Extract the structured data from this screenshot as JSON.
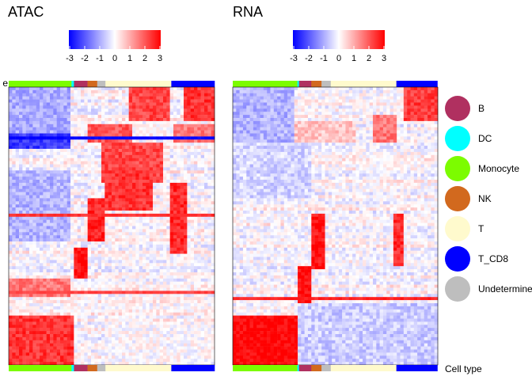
{
  "chart_data": {
    "type": "heatmap",
    "color_scale": {
      "ticks": [
        "-3",
        "-2",
        "-1",
        "0",
        "1",
        "2",
        "3"
      ],
      "min": -3,
      "max": 3,
      "colors": {
        "low": "#0000ff",
        "mid": "#ffffff",
        "high": "#ff0000"
      }
    },
    "annotation_label": "Cell type",
    "annotation_label_cut": "e",
    "panels": [
      {
        "title": "ATAC",
        "n_rows": 90,
        "n_cols": 60,
        "annotation": [
          {
            "type": "Monocyte",
            "fraction": 0.305
          },
          {
            "type": "DC",
            "fraction": 0.012
          },
          {
            "type": "B",
            "fraction": 0.066
          },
          {
            "type": "NK",
            "fraction": 0.047
          },
          {
            "type": "Undetermined",
            "fraction": 0.04
          },
          {
            "type": "T",
            "fraction": 0.32
          },
          {
            "type": "T_CD8",
            "fraction": 0.21
          }
        ],
        "blocks": [
          {
            "rows": [
              0.0,
              0.12
            ],
            "cols": [
              0.59,
              0.79
            ],
            "value": 2.2
          },
          {
            "rows": [
              0.0,
              0.12
            ],
            "cols": [
              0.85,
              1.0
            ],
            "value": 2.4
          },
          {
            "rows": [
              0.0,
              0.2
            ],
            "cols": [
              0.0,
              0.3
            ],
            "value": -1.0
          },
          {
            "rows": [
              0.13,
              0.2
            ],
            "cols": [
              0.38,
              0.6
            ],
            "value": 2.0
          },
          {
            "rows": [
              0.13,
              0.2
            ],
            "cols": [
              0.8,
              1.0
            ],
            "value": 1.6
          },
          {
            "rows": [
              0.17,
              0.22
            ],
            "cols": [
              0.0,
              0.3
            ],
            "value": -2.3
          },
          {
            "rows": [
              0.2,
              0.34
            ],
            "cols": [
              0.45,
              0.75
            ],
            "value": 2.2
          },
          {
            "rows": [
              0.3,
              0.45
            ],
            "cols": [
              0.46,
              0.7
            ],
            "value": 2.4
          },
          {
            "rows": [
              0.3,
              0.56
            ],
            "cols": [
              0.0,
              0.3
            ],
            "value": -0.9
          },
          {
            "rows": [
              0.4,
              0.56
            ],
            "cols": [
              0.39,
              0.47
            ],
            "value": 2.6
          },
          {
            "rows": [
              0.35,
              0.6
            ],
            "cols": [
              0.79,
              0.86
            ],
            "value": 2.5
          },
          {
            "rows": [
              0.58,
              0.69
            ],
            "cols": [
              0.31,
              0.38
            ],
            "value": 2.8
          },
          {
            "rows": [
              0.69,
              0.76
            ],
            "cols": [
              0.0,
              0.3
            ],
            "value": 1.6
          },
          {
            "rows": [
              0.82,
              1.0
            ],
            "cols": [
              0.0,
              0.31
            ],
            "value": 2.4
          },
          {
            "rows": [
              0.84,
              1.0
            ],
            "cols": [
              0.47,
              1.0
            ],
            "value": 0.0
          }
        ],
        "hlines": [
          {
            "rows": [
              0.18,
              0.19
            ],
            "value": -3.0
          },
          {
            "rows": [
              0.46,
              0.47
            ],
            "value": 2.4
          },
          {
            "rows": [
              0.73,
              0.74
            ],
            "value": 2.2
          }
        ]
      },
      {
        "title": "RNA",
        "n_rows": 90,
        "n_cols": 60,
        "annotation": [
          {
            "type": "Monocyte",
            "fraction": 0.315
          },
          {
            "type": "DC",
            "fraction": 0.008
          },
          {
            "type": "B",
            "fraction": 0.06
          },
          {
            "type": "NK",
            "fraction": 0.05
          },
          {
            "type": "Undetermined",
            "fraction": 0.045
          },
          {
            "type": "T",
            "fraction": 0.32
          },
          {
            "type": "T_CD8",
            "fraction": 0.2
          }
        ],
        "blocks": [
          {
            "rows": [
              0.0,
              0.12
            ],
            "cols": [
              0.84,
              1.0
            ],
            "value": 2.3
          },
          {
            "rows": [
              0.0,
              0.2
            ],
            "cols": [
              0.0,
              0.3
            ],
            "value": -0.9
          },
          {
            "rows": [
              0.1,
              0.2
            ],
            "cols": [
              0.68,
              0.8
            ],
            "value": 1.6
          },
          {
            "rows": [
              0.12,
              0.2
            ],
            "cols": [
              0.3,
              0.6
            ],
            "value": 0.7
          },
          {
            "rows": [
              0.2,
              0.4
            ],
            "cols": [
              0.0,
              0.38
            ],
            "value": -0.5
          },
          {
            "rows": [
              0.46,
              0.66
            ],
            "cols": [
              0.39,
              0.45
            ],
            "value": 2.8
          },
          {
            "rows": [
              0.46,
              0.65
            ],
            "cols": [
              0.79,
              0.83
            ],
            "value": 2.5
          },
          {
            "rows": [
              0.65,
              0.78
            ],
            "cols": [
              0.31,
              0.38
            ],
            "value": 2.9
          },
          {
            "rows": [
              0.82,
              1.0
            ],
            "cols": [
              0.0,
              0.31
            ],
            "value": 3.0
          },
          {
            "rows": [
              0.78,
              1.0
            ],
            "cols": [
              0.32,
              1.0
            ],
            "value": -0.6
          }
        ],
        "hlines": [
          {
            "rows": [
              0.76,
              0.77
            ],
            "value": 2.6
          }
        ]
      }
    ],
    "legend": {
      "placement": "right",
      "entries": [
        {
          "label": "B",
          "color": "#b03060"
        },
        {
          "label": "DC",
          "color": "#00ffff"
        },
        {
          "label": "Monocyte",
          "color": "#7cfc00"
        },
        {
          "label": "NK",
          "color": "#d2691e"
        },
        {
          "label": "T",
          "color": "#fffacd"
        },
        {
          "label": "T_CD8",
          "color": "#0000ff"
        },
        {
          "label": "Undetermined",
          "color": "#bebebe"
        }
      ]
    }
  }
}
